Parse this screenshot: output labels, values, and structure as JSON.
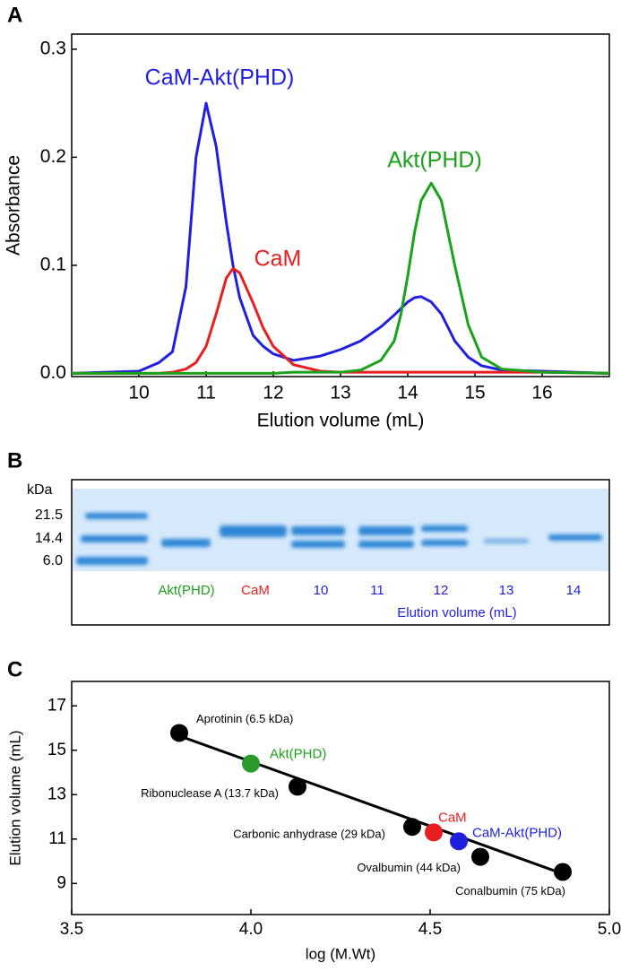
{
  "chart_data": [
    {
      "type": "line",
      "panel": "A",
      "xlabel": "Elution volume (mL)",
      "ylabel": "Absorbance",
      "x": [
        9,
        10,
        10.3,
        10.5,
        10.7,
        10.85,
        11,
        11.15,
        11.3,
        11.4,
        11.5,
        11.7,
        11.85,
        12,
        12.3,
        12.7,
        13,
        13.3,
        13.6,
        13.8,
        13.9,
        14,
        14.1,
        14.2,
        14.35,
        14.5,
        14.7,
        14.9,
        15.1,
        15.4,
        16,
        17
      ],
      "series": [
        {
          "name": "CaM-Akt(PHD)",
          "color": "#1f1fe0",
          "values": [
            0,
            0.002,
            0.01,
            0.02,
            0.08,
            0.2,
            0.25,
            0.21,
            0.14,
            0.1,
            0.07,
            0.035,
            0.025,
            0.018,
            0.012,
            0.016,
            0.022,
            0.03,
            0.043,
            0.054,
            0.06,
            0.066,
            0.07,
            0.071,
            0.066,
            0.055,
            0.03,
            0.015,
            0.007,
            0.003,
            0.002,
            0
          ]
        },
        {
          "name": "CaM",
          "color": "#e81f1f",
          "values": [
            0,
            0,
            0,
            0.001,
            0.004,
            0.01,
            0.025,
            0.055,
            0.088,
            0.097,
            0.093,
            0.065,
            0.042,
            0.025,
            0.008,
            0.002,
            0.001,
            0.001,
            0.001,
            0.001,
            0.001,
            0.001,
            0.001,
            0.001,
            0.001,
            0.001,
            0.001,
            0.001,
            0.001,
            0.001,
            0.001,
            0
          ]
        },
        {
          "name": "Akt(PHD)",
          "color": "#1aa21a",
          "values": [
            0,
            0,
            0,
            0,
            0,
            0,
            0,
            0,
            0,
            0,
            0,
            0,
            0,
            0,
            0.001,
            0.001,
            0.001,
            0.003,
            0.012,
            0.03,
            0.055,
            0.09,
            0.13,
            0.16,
            0.176,
            0.16,
            0.1,
            0.045,
            0.015,
            0.004,
            0.001,
            0
          ]
        }
      ],
      "xlim": [
        9,
        17
      ],
      "ylim": [
        -0.003,
        0.314
      ],
      "xticks": [
        10,
        11,
        12,
        13,
        14,
        15,
        16
      ],
      "yticks": [
        {
          "value": 0,
          "label": "0.0"
        },
        0.1,
        0.2,
        0.3
      ]
    },
    {
      "type": "gel",
      "panel": "B",
      "marker_title": "kDa",
      "markers": [
        "21.5",
        "14.4",
        "6.0"
      ],
      "lanes": [
        {
          "label": "Akt(PHD)",
          "color": "#1aa21a"
        },
        {
          "label": "CaM",
          "color": "#e81f1f"
        },
        {
          "label": "10",
          "color": "#1f1fe0"
        },
        {
          "label": "11",
          "color": "#1f1fe0"
        },
        {
          "label": "12",
          "color": "#1f1fe0"
        },
        {
          "label": "13",
          "color": "#1f1fe0"
        },
        {
          "label": "14",
          "color": "#1f1fe0"
        }
      ],
      "xlabel": "Elution volume (mL)",
      "xlabel_color": "#1f1fe0"
    },
    {
      "type": "scatter",
      "panel": "C",
      "xlabel": "log (M.Wt)",
      "ylabel": "Elution volume (mL)",
      "points": [
        {
          "label": "Aprotinin (6.5 kDa)",
          "x": 3.8,
          "y": 15.78,
          "color": "#000000",
          "label_color": "#000000"
        },
        {
          "label": "Akt(PHD)",
          "x": 4.0,
          "y": 14.4,
          "color": "#2a9a2a",
          "label_color": "#1aa21a"
        },
        {
          "label": "Ribonuclease A (13.7 kDa)",
          "x": 4.13,
          "y": 13.36,
          "color": "#000000",
          "label_color": "#000000"
        },
        {
          "label": "Carbonic anhydrase (29 kDa)",
          "x": 4.45,
          "y": 11.55,
          "color": "#000000",
          "label_color": "#000000"
        },
        {
          "label": "CaM",
          "x": 4.51,
          "y": 11.3,
          "color": "#e81f1f",
          "label_color": "#e81f1f"
        },
        {
          "label": "CaM-Akt(PHD)",
          "x": 4.58,
          "y": 10.9,
          "color": "#1f1fe0",
          "label_color": "#1f1fe0"
        },
        {
          "label": "Ovalbumin (44 kDa)",
          "x": 4.64,
          "y": 10.2,
          "color": "#000000",
          "label_color": "#000000"
        },
        {
          "label": "Conalbumin (75 kDa)",
          "x": 4.87,
          "y": 9.52,
          "color": "#000000",
          "label_color": "#000000"
        }
      ],
      "fit": {
        "x": [
          3.8,
          4.88
        ],
        "y": [
          15.65,
          9.38
        ]
      },
      "xlim": [
        3.5,
        5.0
      ],
      "ylim": [
        7.6,
        18.1
      ],
      "xticks": [
        3.5,
        {
          "value": 4,
          "label": "4.0"
        },
        4.5,
        {
          "value": 5,
          "label": "5.0"
        }
      ],
      "yticks": [
        9,
        11,
        13,
        15,
        17
      ]
    }
  ]
}
